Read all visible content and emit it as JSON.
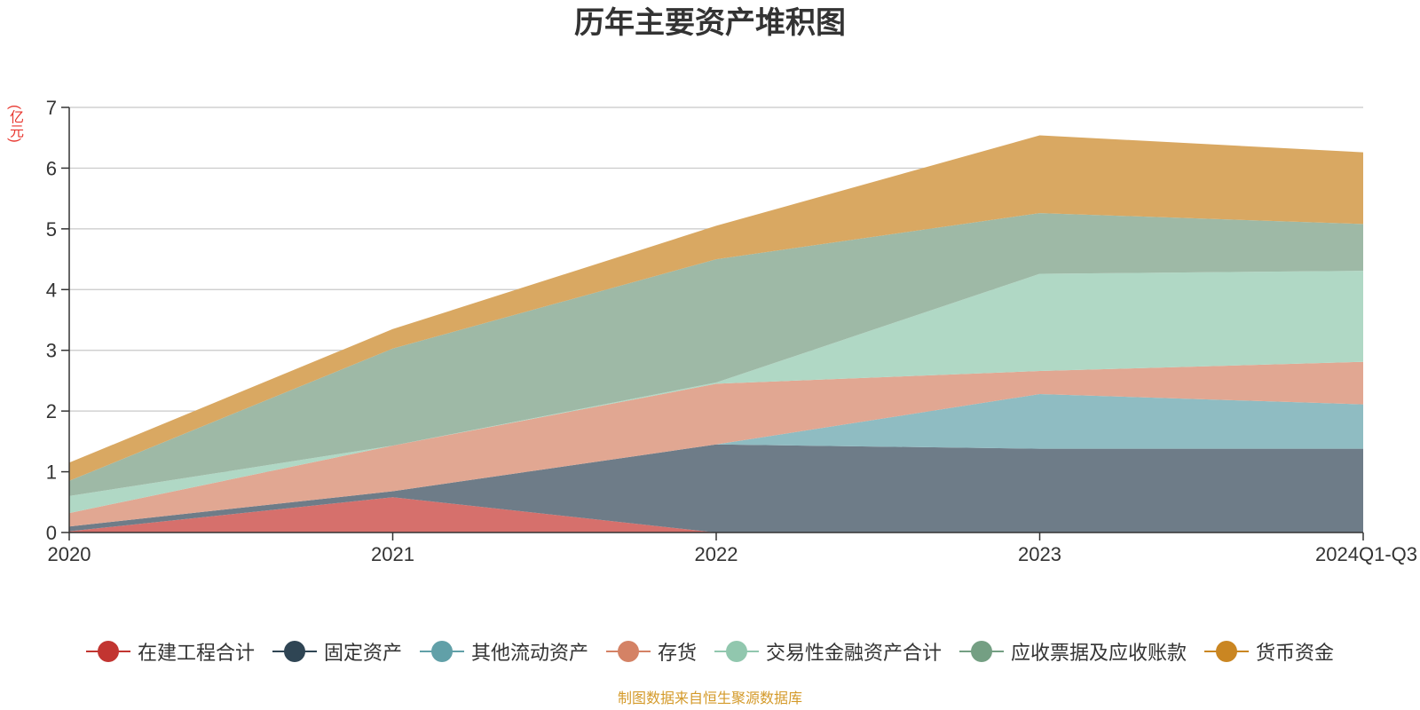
{
  "chart_data": {
    "type": "area",
    "stacked": true,
    "title": "历年主要资产堆积图",
    "unit_label": "(亿元)",
    "source_note": "制图数据来自恒生聚源数据库",
    "x": [
      "2020",
      "2021",
      "2022",
      "2023",
      "2024Q1-Q3"
    ],
    "ylim": [
      0,
      7
    ],
    "yticks": [
      0,
      1,
      2,
      3,
      4,
      5,
      6,
      7
    ],
    "grid": true,
    "legend_position": "bottom",
    "series": [
      {
        "name": "在建工程合计",
        "color": "#c23531",
        "fill": "#d6706c",
        "values": [
          0.02,
          0.58,
          0.0,
          0.0,
          0.0
        ]
      },
      {
        "name": "固定资产",
        "color": "#2f4554",
        "fill": "#6e7c88",
        "values": [
          0.08,
          0.1,
          1.45,
          1.38,
          1.38
        ]
      },
      {
        "name": "其他流动资产",
        "color": "#61a0a8",
        "fill": "#8fbcc2",
        "values": [
          0.0,
          0.0,
          0.0,
          0.9,
          0.73
        ]
      },
      {
        "name": "存货",
        "color": "#d48265",
        "fill": "#e1a792",
        "values": [
          0.22,
          0.75,
          1.0,
          0.38,
          0.7
        ]
      },
      {
        "name": "交易性金融资产合计",
        "color": "#91c7ae",
        "fill": "#b0d8c5",
        "values": [
          0.28,
          0.0,
          0.02,
          1.6,
          1.5
        ]
      },
      {
        "name": "应收票据及应收账款",
        "color": "#749f83",
        "fill": "#9eb9a6",
        "values": [
          0.25,
          1.6,
          2.03,
          1.0,
          0.77
        ]
      },
      {
        "name": "货币资金",
        "color": "#ca8622",
        "fill": "#d9a862",
        "values": [
          0.3,
          0.32,
          0.55,
          1.28,
          1.18
        ]
      }
    ]
  }
}
